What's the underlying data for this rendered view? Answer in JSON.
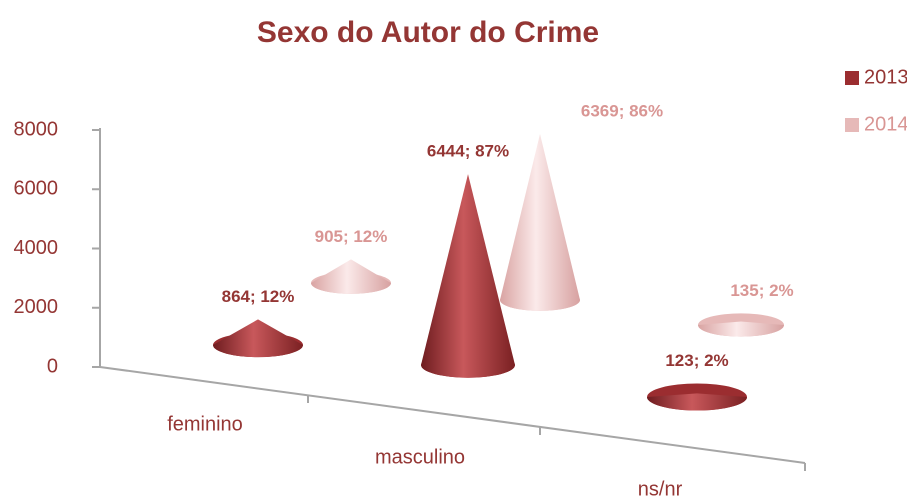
{
  "chart_data": {
    "type": "cone",
    "title": "Sexo do Autor do Crime",
    "categories": [
      "feminino",
      "masculino",
      "ns/nr"
    ],
    "series": [
      {
        "name": "2013",
        "color": "#9b2d30",
        "values": [
          864,
          6444,
          123
        ],
        "value_labels": [
          "864; 12%",
          "6444; 87%",
          "123; 2%"
        ]
      },
      {
        "name": "2014",
        "color": "#e6b9b8",
        "values": [
          905,
          6369,
          135
        ],
        "value_labels": [
          "905; 12%",
          "6369; 86%",
          "135; 2%"
        ]
      }
    ],
    "ylim": [
      0,
      8000
    ],
    "yticks": [
      0,
      2000,
      4000,
      6000,
      8000
    ],
    "legend": "right"
  }
}
